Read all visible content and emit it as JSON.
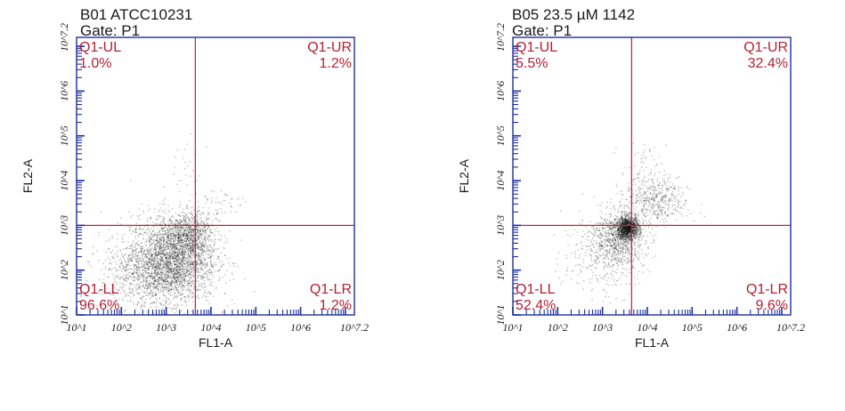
{
  "colors": {
    "frame": "#1c2fa0",
    "gate": "#c0203a",
    "quadrant_text": "#b52035",
    "dots": "#000000"
  },
  "chart_data": [
    {
      "type": "scatter",
      "title": "B01 ATCC10231",
      "subtitle": "Gate: P1",
      "xlabel": "FL1-A",
      "ylabel": "FL2-A",
      "scale": "log10",
      "xlim": [
        1,
        7.2
      ],
      "ylim": [
        1,
        7.2
      ],
      "xticks": [
        "10^1",
        "10^2",
        "10^3",
        "10^4",
        "10^5",
        "10^6",
        "10^7.2"
      ],
      "yticks": [
        "10^1",
        "10^2",
        "10^3",
        "10^4",
        "10^5",
        "10^6",
        "10^7.2"
      ],
      "gate": {
        "x": 3.65,
        "y": 3.0
      },
      "quadrants": [
        {
          "name": "Q1-UL",
          "percent": "1.0%",
          "corner": "top-left"
        },
        {
          "name": "Q1-UR",
          "percent": "1.2%",
          "corner": "top-right"
        },
        {
          "name": "Q1-LL",
          "percent": "96.6%",
          "corner": "bottom-left"
        },
        {
          "name": "Q1-LR",
          "percent": "1.2%",
          "corner": "bottom-right"
        }
      ],
      "point_clusters": [
        {
          "cx": 3.15,
          "cy": 2.3,
          "sx": 0.48,
          "sy": 0.48,
          "count": 2600
        },
        {
          "cx": 2.6,
          "cy": 1.9,
          "sx": 0.55,
          "sy": 0.4,
          "count": 900
        },
        {
          "cx": 3.55,
          "cy": 2.85,
          "sx": 0.22,
          "sy": 0.22,
          "count": 500
        },
        {
          "cx": 4.1,
          "cy": 3.45,
          "sx": 0.3,
          "sy": 0.22,
          "count": 60
        },
        {
          "cx": 3.4,
          "cy": 4.3,
          "sx": 0.2,
          "sy": 0.35,
          "count": 25
        }
      ]
    },
    {
      "type": "scatter",
      "title": "B05 23.5 µM 1142",
      "subtitle": "Gate: P1",
      "xlabel": "FL1-A",
      "ylabel": "FL2-A",
      "scale": "log10",
      "xlim": [
        1,
        7.2
      ],
      "ylim": [
        1,
        7.2
      ],
      "xticks": [
        "10^1",
        "10^2",
        "10^3",
        "10^4",
        "10^5",
        "10^6",
        "10^7.2"
      ],
      "yticks": [
        "10^1",
        "10^2",
        "10^3",
        "10^4",
        "10^5",
        "10^6",
        "10^7.2"
      ],
      "gate": {
        "x": 3.65,
        "y": 3.0
      },
      "quadrants": [
        {
          "name": "Q1-UL",
          "percent": "5.5%",
          "corner": "top-left"
        },
        {
          "name": "Q1-UR",
          "percent": "32.4%",
          "corner": "top-right"
        },
        {
          "name": "Q1-LL",
          "percent": "52.4%",
          "corner": "bottom-left"
        },
        {
          "name": "Q1-LR",
          "percent": "9.6%",
          "corner": "bottom-right"
        }
      ],
      "point_clusters": [
        {
          "cx": 3.55,
          "cy": 2.95,
          "sx": 0.13,
          "sy": 0.13,
          "count": 1200
        },
        {
          "cx": 3.3,
          "cy": 2.7,
          "sx": 0.32,
          "sy": 0.32,
          "count": 800
        },
        {
          "cx": 3.0,
          "cy": 2.3,
          "sx": 0.45,
          "sy": 0.45,
          "count": 260
        },
        {
          "cx": 4.2,
          "cy": 3.55,
          "sx": 0.35,
          "sy": 0.25,
          "count": 420
        },
        {
          "cx": 3.9,
          "cy": 4.0,
          "sx": 0.25,
          "sy": 0.4,
          "count": 120
        }
      ]
    }
  ]
}
